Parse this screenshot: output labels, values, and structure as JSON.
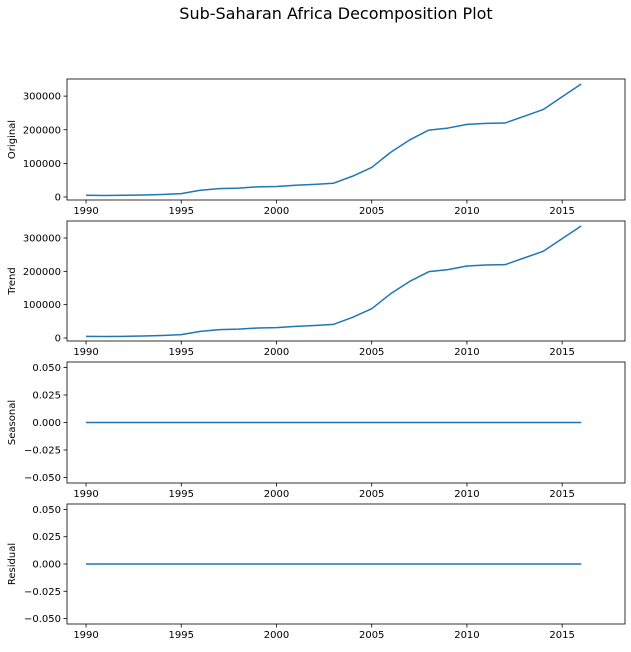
{
  "title": "Sub-Saharan Africa Decomposition Plot",
  "chart_data": [
    {
      "type": "line",
      "ylabel": "Original",
      "x": [
        1990,
        1991,
        1992,
        1993,
        1994,
        1995,
        1996,
        1997,
        1998,
        1999,
        2000,
        2001,
        2002,
        2003,
        2004,
        2005,
        2006,
        2007,
        2008,
        2009,
        2010,
        2011,
        2012,
        2013,
        2014,
        2015,
        2016
      ],
      "values": [
        5000,
        4500,
        5000,
        6000,
        7500,
        10000,
        20000,
        25000,
        26500,
        30000,
        31000,
        35000,
        37500,
        41000,
        62000,
        88000,
        133000,
        170000,
        199000,
        205000,
        216000,
        219000,
        220000,
        240000,
        260000,
        298000,
        336000
      ],
      "xlim": [
        1989,
        2018.3
      ],
      "ylim": [
        -9000,
        351000
      ],
      "xticks": [
        "1990",
        "1995",
        "2000",
        "2005",
        "2010",
        "2015"
      ],
      "yticks": [
        "0",
        "100000",
        "200000",
        "300000"
      ]
    },
    {
      "type": "line",
      "ylabel": "Trend",
      "x": [
        1990,
        1991,
        1992,
        1993,
        1994,
        1995,
        1996,
        1997,
        1998,
        1999,
        2000,
        2001,
        2002,
        2003,
        2004,
        2005,
        2006,
        2007,
        2008,
        2009,
        2010,
        2011,
        2012,
        2013,
        2014,
        2015,
        2016
      ],
      "values": [
        5000,
        4500,
        5000,
        6000,
        7500,
        10000,
        20000,
        25000,
        26500,
        30000,
        31000,
        35000,
        37500,
        41000,
        62000,
        88000,
        133000,
        170000,
        199000,
        205000,
        216000,
        219000,
        220000,
        240000,
        260000,
        298000,
        336000
      ],
      "xlim": [
        1989,
        2018.3
      ],
      "ylim": [
        -9000,
        351000
      ],
      "xticks": [
        "1990",
        "1995",
        "2000",
        "2005",
        "2010",
        "2015"
      ],
      "yticks": [
        "0",
        "100000",
        "200000",
        "300000"
      ]
    },
    {
      "type": "line",
      "ylabel": "Seasonal",
      "x": [
        1990,
        2016
      ],
      "values": [
        0,
        0
      ],
      "xlim": [
        1989,
        2018.3
      ],
      "ylim": [
        -0.055,
        0.055
      ],
      "xticks": [
        "1990",
        "1995",
        "2000",
        "2005",
        "2010",
        "2015"
      ],
      "yticks": [
        "0.050",
        "0.025",
        "0.000",
        "−0.025",
        "−0.050"
      ]
    },
    {
      "type": "line",
      "ylabel": "Residual",
      "x": [
        1990,
        2016
      ],
      "values": [
        0,
        0
      ],
      "xlim": [
        1989,
        2018.3
      ],
      "ylim": [
        -0.055,
        0.055
      ],
      "xticks": [
        "1990",
        "1995",
        "2000",
        "2005",
        "2010",
        "2015"
      ],
      "yticks": [
        "0.050",
        "0.025",
        "0.000",
        "−0.025",
        "−0.050"
      ]
    }
  ],
  "colors": {
    "series": "#1f77b4"
  }
}
